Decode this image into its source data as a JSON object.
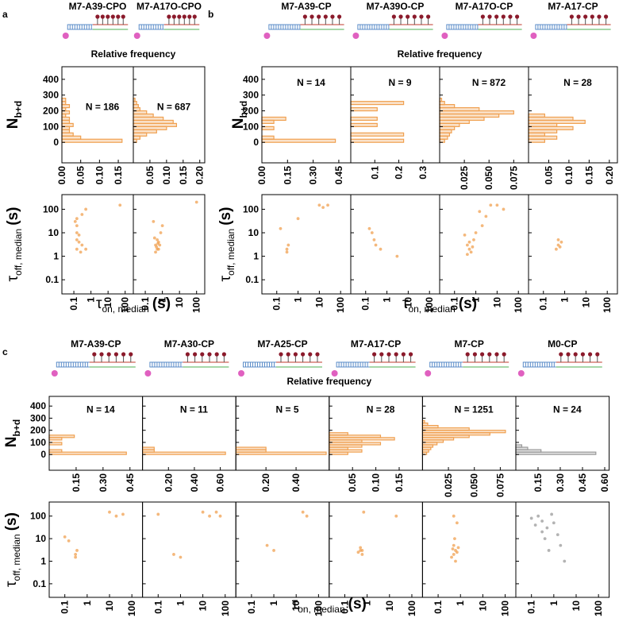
{
  "panels": [
    {
      "letter": "a",
      "title": "Relative frequency",
      "hist_ylabel": "N",
      "hist_ylabel_sub": "b+d",
      "scatter_ylabel": "τ",
      "scatter_ylabel_sub": "off, median",
      "scatter_ylabel_unit": "(s)",
      "scatter_xlabel": "τ",
      "scatter_xlabel_sub": "on, median",
      "scatter_xlabel_unit": "(s)"
    },
    {
      "letter": "b",
      "title": "Relative frequency",
      "hist_ylabel": "N",
      "hist_ylabel_sub": "b+d",
      "scatter_ylabel": "τ",
      "scatter_ylabel_sub": "off, median",
      "scatter_ylabel_unit": "(s)",
      "scatter_xlabel": "τ",
      "scatter_xlabel_sub": "on, median",
      "scatter_xlabel_unit": "(s)"
    },
    {
      "letter": "c",
      "title": "Relative frequency",
      "hist_ylabel": "N",
      "hist_ylabel_sub": "b+d",
      "scatter_ylabel": "τ",
      "scatter_ylabel_sub": "off, median",
      "scatter_ylabel_unit": "(s)",
      "scatter_xlabel": "τ",
      "scatter_xlabel_sub": "on, median",
      "scatter_xlabel_unit": "(s)"
    }
  ],
  "chart_data": [
    {
      "type": "histogram",
      "orientation": "horizontal",
      "title": "M7-A39-CPO",
      "annotation": "N = 186",
      "color": "#f0a050",
      "bins": [
        0,
        20,
        40,
        60,
        80,
        100,
        120,
        140,
        160,
        180,
        200,
        220,
        240,
        260,
        280
      ],
      "values": [
        0.16,
        0.05,
        0.03,
        0.02,
        0.02,
        0.03,
        0.02,
        0.02,
        0.01,
        0.02,
        0.01,
        0.02,
        0.01,
        0.01
      ],
      "xlim": [
        0,
        0.19
      ],
      "xticks": [
        {
          "value": 0,
          "label": "0.00"
        },
        0.05,
        {
          "value": 0.1,
          "label": "0.10"
        },
        0.15
      ],
      "ylim": [
        -130,
        480
      ],
      "yticks": [
        0,
        100,
        200,
        300,
        400
      ]
    },
    {
      "type": "histogram",
      "orientation": "horizontal",
      "title": "M7-A17O-CPO",
      "annotation": "N = 687",
      "color": "#f0a050",
      "bins": [
        0,
        20,
        40,
        60,
        80,
        100,
        120,
        140,
        160,
        180,
        200,
        220,
        240,
        260,
        280
      ],
      "values": [
        0.01,
        0.02,
        0.04,
        0.07,
        0.1,
        0.13,
        0.12,
        0.09,
        0.06,
        0.04,
        0.02,
        0.015,
        0.01,
        0.005
      ],
      "xlim": [
        0,
        0.215
      ],
      "xticks": [
        0.05,
        {
          "value": 0.1,
          "label": "0.10"
        },
        0.15,
        {
          "value": 0.2,
          "label": "0.20"
        }
      ],
      "ylim": [
        -130,
        480
      ]
    },
    {
      "type": "scatter",
      "xscale": "log",
      "yscale": "log",
      "color": "#f0a050",
      "x": [
        0.12,
        0.15,
        0.15,
        0.15,
        0.15,
        0.2,
        0.3,
        0.25,
        0.5,
        0.3,
        0.5,
        50,
        0.15,
        0.2
      ],
      "values": [
        30,
        20,
        10,
        5,
        2,
        8,
        3,
        1.5,
        2,
        60,
        100,
        150,
        40,
        4
      ],
      "xlim": [
        0.02,
        300
      ],
      "xticks": [
        0.1,
        1,
        10,
        100
      ],
      "ylim": [
        0.025,
        420
      ],
      "yticks": [
        0.1,
        1,
        10,
        100
      ]
    },
    {
      "type": "scatter",
      "xscale": "log",
      "yscale": "log",
      "color": "#f0a050",
      "x": [
        0.4,
        0.5,
        0.6,
        0.45,
        0.55,
        0.5,
        0.7,
        0.35,
        0.6,
        0.4,
        0.8,
        1,
        100,
        0.3
      ],
      "values": [
        3,
        2,
        4,
        2.5,
        3.5,
        5,
        3,
        6,
        2,
        1.5,
        10,
        20,
        200,
        30
      ],
      "xlim": [
        0.02,
        300
      ],
      "xticks": [
        0.1,
        1,
        10,
        100
      ],
      "ylim": [
        0.025,
        420
      ]
    },
    {
      "type": "histogram",
      "orientation": "horizontal",
      "title": "M7-A39-CP",
      "annotation": "N = 14",
      "color": "#f0a050",
      "bins": [
        0,
        20,
        40,
        60,
        80,
        100,
        120,
        140,
        160,
        180
      ],
      "values": [
        0.43,
        0.07,
        0,
        0,
        0.07,
        0,
        0.07,
        0.14,
        0
      ],
      "xlim": [
        0,
        0.52
      ],
      "xticks": [
        {
          "value": 0,
          "label": "0.00"
        },
        0.15,
        {
          "value": 0.3,
          "label": "0.30"
        },
        0.45
      ],
      "ylim": [
        -130,
        480
      ],
      "yticks": [
        0,
        100,
        200,
        300,
        400
      ]
    },
    {
      "type": "histogram",
      "orientation": "horizontal",
      "title": "M7-A39O-CP",
      "annotation": "N = 9",
      "color": "#f0a050",
      "bins": [
        0,
        20,
        40,
        60,
        80,
        100,
        120,
        140,
        160,
        180,
        200,
        220,
        240,
        260
      ],
      "values": [
        0.22,
        0,
        0.22,
        0,
        0,
        0.11,
        0,
        0.11,
        0,
        0,
        0.11,
        0,
        0.22
      ],
      "xlim": [
        0,
        0.37
      ],
      "xticks": [
        0.1,
        0.2,
        0.3
      ],
      "ylim": [
        -130,
        480
      ]
    },
    {
      "type": "histogram",
      "orientation": "horizontal",
      "title": "M7-A17O-CP",
      "annotation": "N = 872",
      "color": "#f0a050",
      "bins": [
        0,
        20,
        40,
        60,
        80,
        100,
        120,
        140,
        160,
        180,
        200,
        220,
        240,
        260,
        280
      ],
      "values": [
        0.005,
        0.008,
        0.01,
        0.012,
        0.015,
        0.02,
        0.03,
        0.045,
        0.06,
        0.075,
        0.04,
        0.015,
        0.005,
        0.002
      ],
      "xlim": [
        0,
        0.09
      ],
      "xticks": [
        0.025,
        {
          "value": 0.05,
          "label": "0.050"
        },
        0.075
      ],
      "ylim": [
        -130,
        480
      ]
    },
    {
      "type": "histogram",
      "orientation": "horizontal",
      "title": "M7-A17-CP",
      "annotation": "N = 28",
      "color": "#f0a050",
      "bins": [
        0,
        20,
        40,
        60,
        80,
        100,
        120,
        140,
        160,
        180
      ],
      "values": [
        0.04,
        0.07,
        0.04,
        0.07,
        0.11,
        0.07,
        0.14,
        0.11,
        0.04
      ],
      "xlim": [
        0,
        0.22
      ],
      "xticks": [
        0.05,
        {
          "value": 0.1,
          "label": "0.10"
        },
        0.15,
        {
          "value": 0.2,
          "label": "0.20"
        }
      ],
      "ylim": [
        -130,
        480
      ]
    },
    {
      "type": "scatter",
      "xscale": "log",
      "yscale": "log",
      "color": "#f0a050",
      "x": [
        0.15,
        0.3,
        0.35,
        0.3,
        1,
        10,
        15,
        25
      ],
      "values": [
        15,
        2,
        3,
        1.5,
        40,
        150,
        120,
        150
      ],
      "xlim": [
        0.02,
        300
      ],
      "xticks": [
        0.1,
        1,
        10,
        100
      ],
      "ylim": [
        0.025,
        420
      ],
      "yticks": [
        0.1,
        1,
        10,
        100
      ]
    },
    {
      "type": "scatter",
      "xscale": "log",
      "yscale": "log",
      "color": "#f0a050",
      "x": [
        0.15,
        0.2,
        0.25,
        0.3,
        0.5,
        3
      ],
      "values": [
        15,
        10,
        5,
        3,
        2,
        1
      ],
      "xlim": [
        0.02,
        300
      ],
      "xticks": [
        0.1,
        1,
        10,
        100
      ],
      "ylim": [
        0.025,
        420
      ]
    },
    {
      "type": "scatter",
      "xscale": "log",
      "yscale": "log",
      "color": "#f0a050",
      "x": [
        0.5,
        0.4,
        0.6,
        0.7,
        0.5,
        0.4,
        0.8,
        1,
        2,
        3,
        1.5,
        5,
        10,
        20,
        0.3
      ],
      "values": [
        2,
        3,
        1.5,
        2.5,
        4,
        1.2,
        5,
        10,
        20,
        50,
        80,
        150,
        150,
        100,
        8
      ],
      "xlim": [
        0.02,
        300
      ],
      "xticks": [
        0.1,
        1,
        10,
        100
      ],
      "ylim": [
        0.025,
        420
      ]
    },
    {
      "type": "scatter",
      "xscale": "log",
      "yscale": "log",
      "color": "#f0a050",
      "x": [
        0.5,
        0.6,
        0.4,
        0.7,
        0.5
      ],
      "values": [
        3,
        2.5,
        2,
        4,
        5
      ],
      "xlim": [
        0.02,
        300
      ],
      "xticks": [
        0.1,
        1,
        10,
        100
      ],
      "ylim": [
        0.025,
        420
      ]
    },
    {
      "type": "histogram",
      "orientation": "horizontal",
      "title": "M7-A39-CP",
      "annotation": "N = 14",
      "color": "#f0a050",
      "bins": [
        0,
        20,
        40,
        60,
        80,
        100,
        120,
        140,
        160,
        180
      ],
      "values": [
        0.43,
        0.07,
        0,
        0,
        0.07,
        0,
        0.07,
        0.14,
        0
      ],
      "xlim": [
        0,
        0.52
      ],
      "xticks": [
        0.15,
        {
          "value": 0.3,
          "label": "0.30"
        },
        0.45
      ],
      "ylim": [
        -130,
        480
      ],
      "yticks": [
        0,
        100,
        200,
        300,
        400
      ]
    },
    {
      "type": "histogram",
      "orientation": "horizontal",
      "title": "M7-A30-CP",
      "annotation": "N = 11",
      "color": "#f0a050",
      "bins": [
        0,
        20,
        40,
        60
      ],
      "values": [
        0.64,
        0.09,
        0.09
      ],
      "xlim": [
        0,
        0.72
      ],
      "xticks": [
        {
          "value": 0.2,
          "label": "0.20"
        },
        {
          "value": 0.4,
          "label": "0.40"
        },
        {
          "value": 0.6,
          "label": "0.60"
        }
      ],
      "ylim": [
        -130,
        480
      ]
    },
    {
      "type": "histogram",
      "orientation": "horizontal",
      "title": "M7-A25-CP",
      "annotation": "N = 5",
      "color": "#f0a050",
      "bins": [
        0,
        20,
        40,
        60
      ],
      "values": [
        0.6,
        0.2,
        0.2
      ],
      "xlim": [
        0,
        0.62
      ],
      "xticks": [
        {
          "value": 0.2,
          "label": "0.20"
        },
        {
          "value": 0.4,
          "label": "0.40"
        }
      ],
      "ylim": [
        -130,
        480
      ]
    },
    {
      "type": "histogram",
      "orientation": "horizontal",
      "title": "M7-A17-CP",
      "annotation": "N = 28",
      "color": "#f0a050",
      "bins": [
        0,
        20,
        40,
        60,
        80,
        100,
        120,
        140,
        160,
        180
      ],
      "values": [
        0.04,
        0.07,
        0.04,
        0.07,
        0.11,
        0.07,
        0.14,
        0.11,
        0.04
      ],
      "xlim": [
        0,
        0.2
      ],
      "xticks": [
        0.05,
        {
          "value": 0.1,
          "label": "0.10"
        },
        0.15
      ],
      "ylim": [
        -130,
        480
      ]
    },
    {
      "type": "histogram",
      "orientation": "horizontal",
      "title": "M7-CP",
      "annotation": "N = 1251",
      "color": "#f0a050",
      "bins": [
        0,
        20,
        40,
        60,
        80,
        100,
        120,
        140,
        160,
        180,
        200,
        220,
        240,
        260,
        280
      ],
      "values": [
        0.004,
        0.006,
        0.008,
        0.01,
        0.014,
        0.02,
        0.03,
        0.045,
        0.065,
        0.08,
        0.045,
        0.015,
        0.005,
        0.002
      ],
      "xlim": [
        0,
        0.09
      ],
      "xticks": [
        0.025,
        {
          "value": 0.05,
          "label": "0.050"
        },
        0.075
      ],
      "ylim": [
        -130,
        480
      ]
    },
    {
      "type": "histogram",
      "orientation": "horizontal",
      "title": "M0-CP",
      "annotation": "N = 24",
      "color": "#999999",
      "bins": [
        0,
        20,
        40,
        60,
        80
      ],
      "values": [
        0.54,
        0.17,
        0.08,
        0.04
      ],
      "xlim": [
        0,
        0.63
      ],
      "xticks": [
        0.15,
        {
          "value": 0.3,
          "label": "0.30"
        },
        0.45,
        {
          "value": 0.6,
          "label": "0.60"
        }
      ],
      "ylim": [
        -130,
        480
      ]
    },
    {
      "type": "scatter",
      "xscale": "log",
      "yscale": "log",
      "color": "#f0a050",
      "x": [
        0.1,
        0.15,
        0.3,
        0.35,
        0.3,
        10,
        20,
        40
      ],
      "values": [
        12,
        8,
        2,
        3,
        1.5,
        150,
        100,
        120
      ],
      "xlim": [
        0.02,
        300
      ],
      "xticks": [
        0.1,
        1,
        10,
        100
      ],
      "ylim": [
        0.025,
        420
      ],
      "yticks": [
        0.1,
        1,
        10,
        100
      ]
    },
    {
      "type": "scatter",
      "xscale": "log",
      "yscale": "log",
      "color": "#f0a050",
      "x": [
        0.1,
        0.5,
        1,
        10,
        20,
        40,
        60
      ],
      "values": [
        120,
        2,
        1.5,
        150,
        100,
        150,
        100
      ],
      "xlim": [
        0.02,
        300
      ],
      "xticks": [
        0.1,
        1,
        10,
        100
      ],
      "ylim": [
        0.025,
        420
      ]
    },
    {
      "type": "scatter",
      "xscale": "log",
      "yscale": "log",
      "color": "#f0a050",
      "x": [
        0.5,
        1,
        20,
        30
      ],
      "values": [
        5,
        3,
        150,
        100
      ],
      "xlim": [
        0.02,
        300
      ],
      "xticks": [
        0.1,
        1,
        10,
        100
      ],
      "ylim": [
        0.025,
        420
      ]
    },
    {
      "type": "scatter",
      "xscale": "log",
      "yscale": "log",
      "color": "#f0a050",
      "x": [
        0.5,
        0.6,
        0.4,
        0.5,
        0.6,
        0.7,
        20
      ],
      "values": [
        3,
        2,
        2.5,
        4,
        3,
        150,
        100
      ],
      "xlim": [
        0.02,
        300
      ],
      "xticks": [
        0.1,
        1,
        10,
        100
      ],
      "ylim": [
        0.025,
        420
      ]
    },
    {
      "type": "scatter",
      "xscale": "log",
      "yscale": "log",
      "color": "#f0a050",
      "x": [
        0.5,
        0.6,
        0.4,
        0.7,
        0.5,
        0.6,
        0.8,
        0.45,
        0.55,
        0.5,
        0.7
      ],
      "values": [
        2,
        3,
        1.5,
        2.5,
        5,
        1,
        4,
        3.5,
        10,
        100,
        50
      ],
      "xlim": [
        0.02,
        300
      ],
      "xticks": [
        0.1,
        1,
        10,
        100
      ],
      "ylim": [
        0.025,
        420
      ]
    },
    {
      "type": "scatter",
      "xscale": "log",
      "yscale": "log",
      "color": "#999999",
      "x": [
        0.1,
        0.15,
        0.2,
        0.3,
        0.5,
        0.8,
        1,
        0.4,
        0.6,
        1.5,
        2,
        0.3,
        3
      ],
      "values": [
        80,
        40,
        100,
        60,
        30,
        120,
        50,
        10,
        3,
        15,
        5,
        20,
        1
      ],
      "xlim": [
        0.02,
        300
      ],
      "xticks": [
        0.1,
        1,
        10,
        100
      ],
      "ylim": [
        0.025,
        420
      ]
    }
  ]
}
